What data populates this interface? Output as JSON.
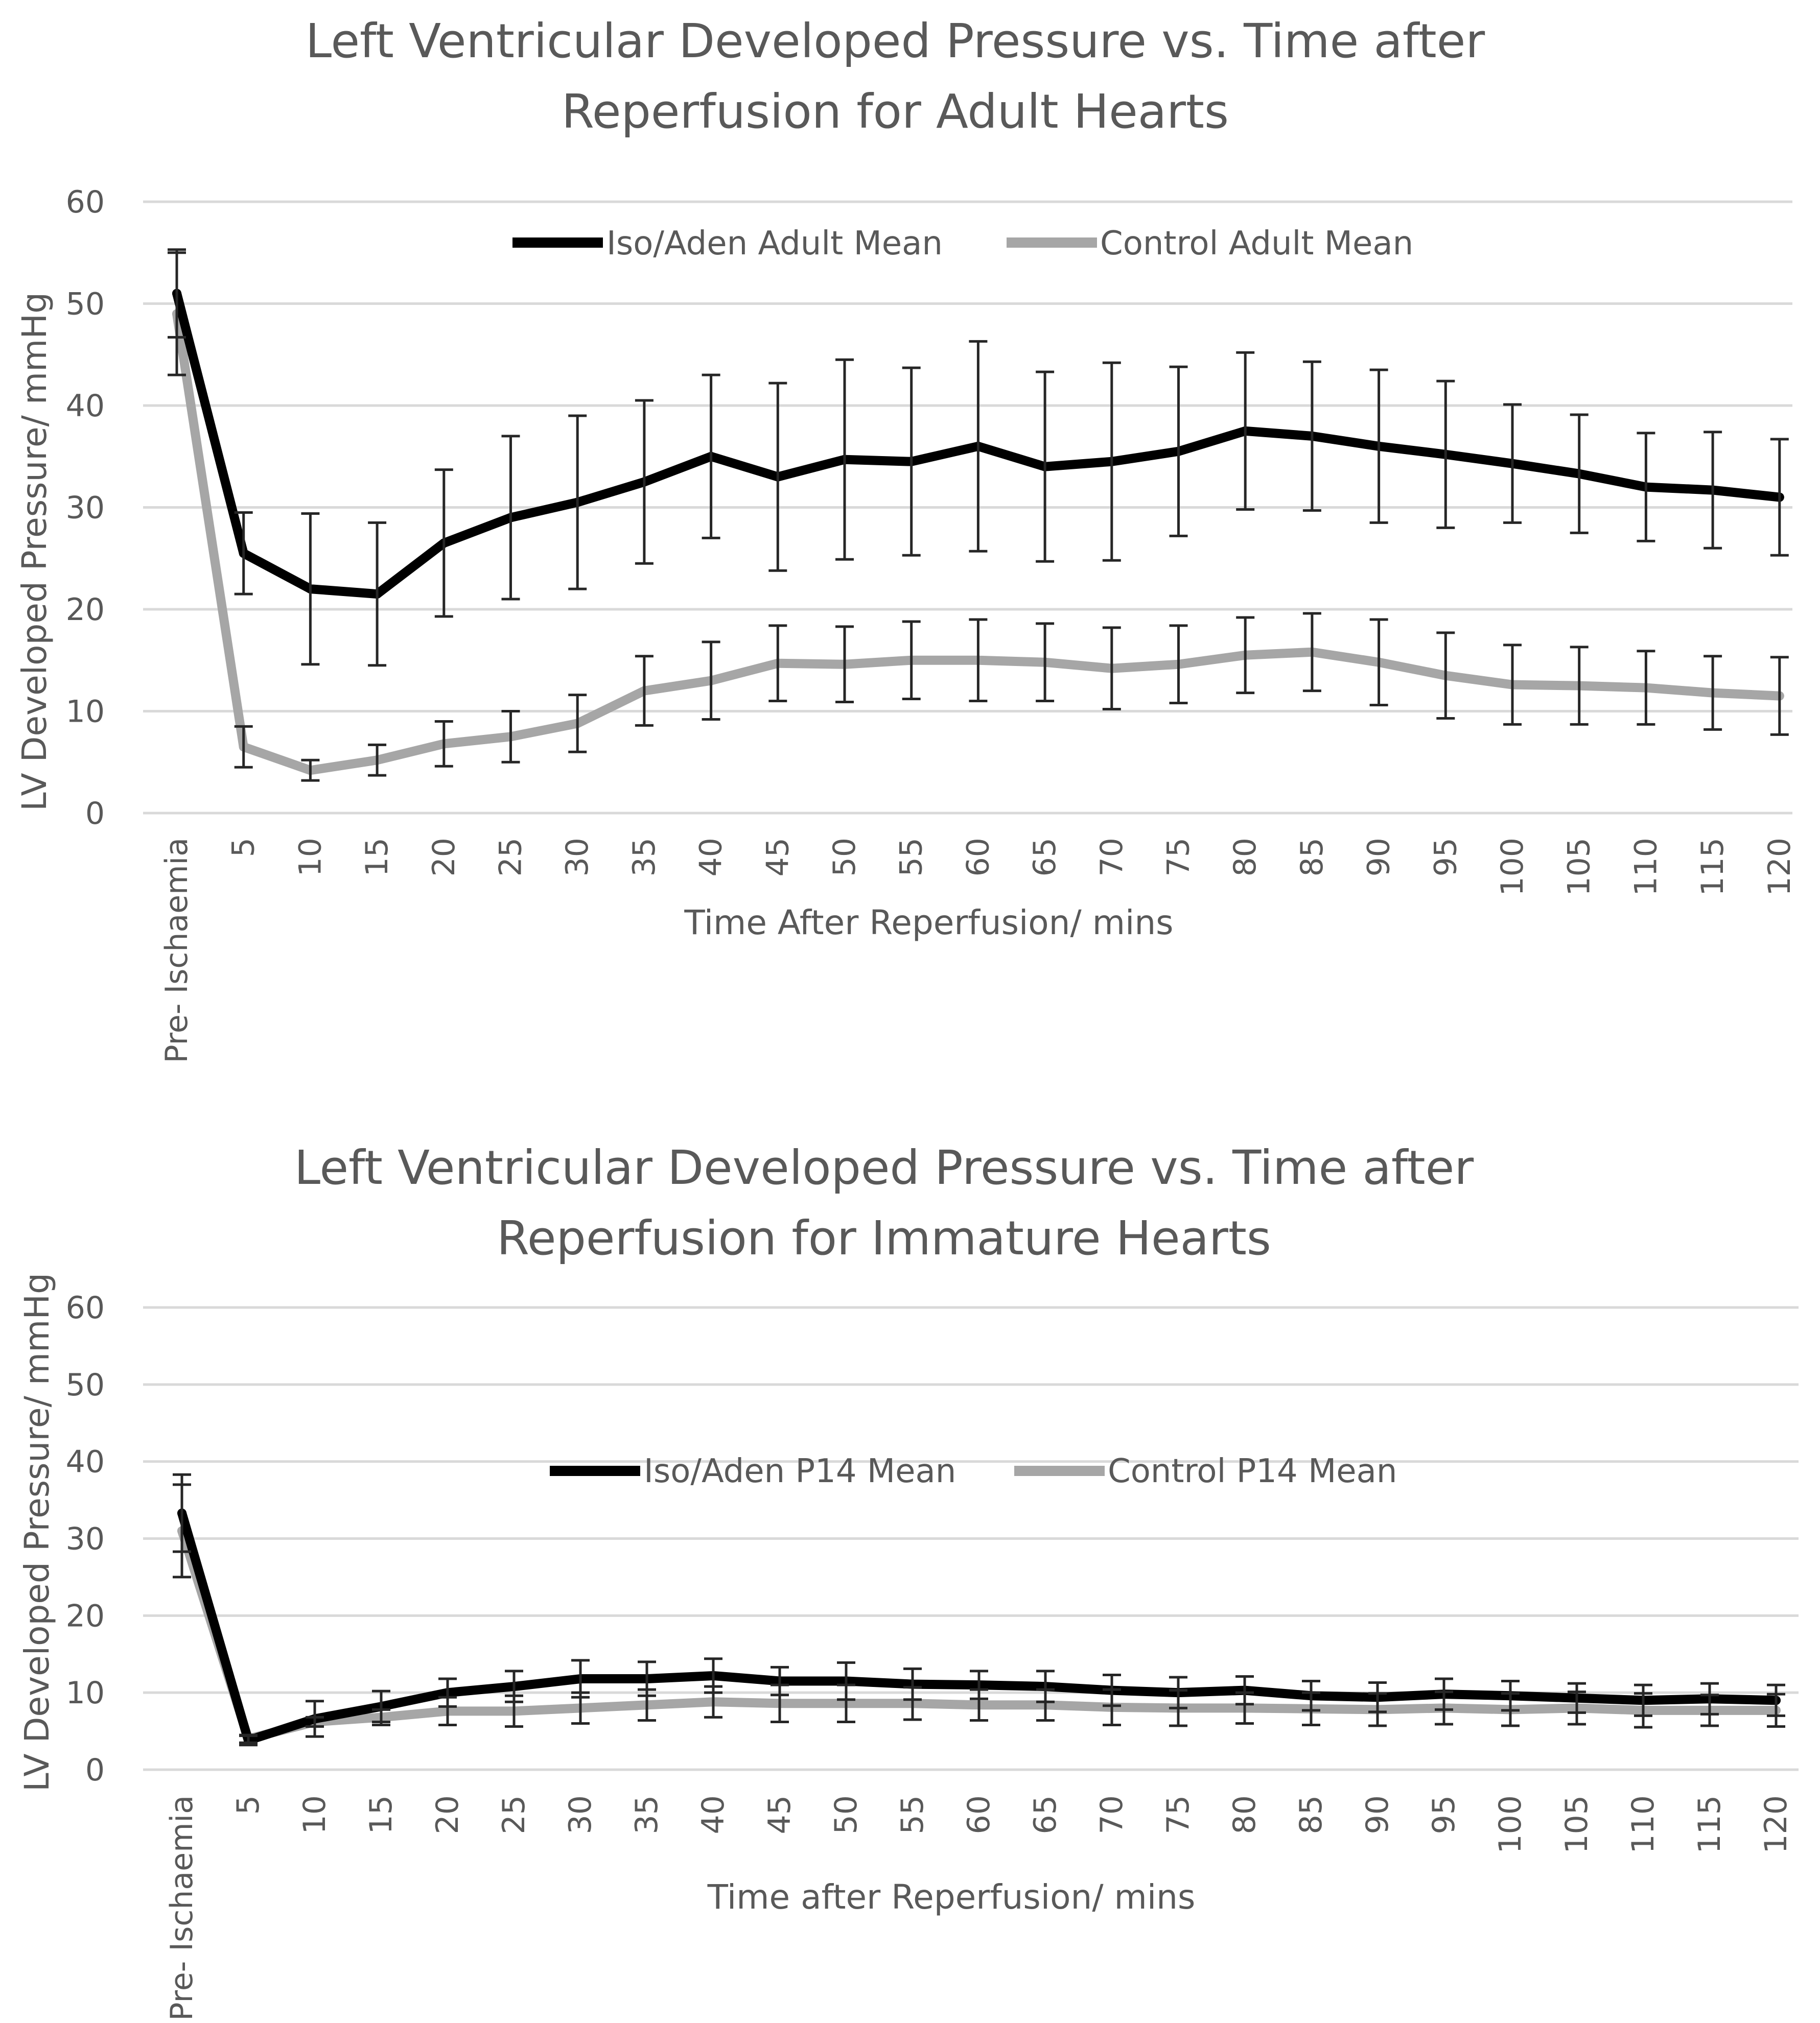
{
  "colors": {
    "iso": "#000000",
    "control": "#a6a6a6",
    "grid": "#d9d9d9",
    "text": "#595959"
  },
  "chart_data": [
    {
      "type": "line",
      "title_line1": "Left Ventricular Developed Pressure vs. Time after",
      "title_line2": "Reperfusion for Adult Hearts",
      "xlabel": "Time After Reperfusion/ mins",
      "ylabel": "LV Developed Pressure/ mmHg",
      "ylim": [
        0,
        60
      ],
      "yticks": [
        "0",
        "10",
        "20",
        "30",
        "40",
        "50",
        "60"
      ],
      "categories": [
        "Pre- Ischaemia",
        "5",
        "10",
        "15",
        "20",
        "25",
        "30",
        "35",
        "40",
        "45",
        "50",
        "55",
        "60",
        "65",
        "70",
        "75",
        "80",
        "85",
        "90",
        "95",
        "100",
        "105",
        "110",
        "115",
        "120"
      ],
      "legend_position": "top-center",
      "series": [
        {
          "name": "Iso/Aden Adult Mean",
          "color": "#000000",
          "values": [
            51,
            25.5,
            22,
            21.5,
            26.5,
            29,
            30.5,
            32.5,
            35,
            33,
            34.7,
            34.5,
            36,
            34,
            34.5,
            35.5,
            37.5,
            37,
            36,
            35.2,
            34.3,
            33.3,
            32,
            31.7,
            31
          ],
          "errors": [
            4.3,
            4,
            7.4,
            7,
            7.2,
            8,
            8.5,
            8,
            8,
            9.2,
            9.8,
            9.2,
            10.3,
            9.3,
            9.7,
            8.3,
            7.7,
            7.3,
            7.5,
            7.2,
            5.8,
            5.8,
            5.3,
            5.7,
            5.7
          ]
        },
        {
          "name": "Control Adult Mean",
          "color": "#a6a6a6",
          "values": [
            49,
            6.5,
            4.2,
            5.2,
            6.8,
            7.5,
            8.8,
            12,
            13,
            14.7,
            14.6,
            15,
            15,
            14.8,
            14.2,
            14.6,
            15.5,
            15.8,
            14.8,
            13.5,
            12.6,
            12.5,
            12.3,
            11.8,
            11.5
          ],
          "errors": [
            6,
            2,
            1,
            1.5,
            2.2,
            2.5,
            2.8,
            3.4,
            3.8,
            3.7,
            3.7,
            3.8,
            4,
            3.8,
            4,
            3.8,
            3.7,
            3.8,
            4.2,
            4.2,
            3.9,
            3.8,
            3.6,
            3.6,
            3.8
          ]
        }
      ]
    },
    {
      "type": "line",
      "title_line1": "Left Ventricular Developed Pressure vs. Time after",
      "title_line2": "Reperfusion for Immature Hearts",
      "xlabel": "Time after Reperfusion/ mins",
      "ylabel": "LV Developed Pressure/ mmHg",
      "ylim": [
        0,
        60
      ],
      "yticks": [
        "0",
        "10",
        "20",
        "30",
        "40",
        "50",
        "60"
      ],
      "categories": [
        "Pre- Ischaemia",
        "5",
        "10",
        "15",
        "20",
        "25",
        "30",
        "35",
        "40",
        "45",
        "50",
        "55",
        "60",
        "65",
        "70",
        "75",
        "80",
        "85",
        "90",
        "95",
        "100",
        "105",
        "110",
        "115",
        "120"
      ],
      "legend_position": "top-center",
      "series": [
        {
          "name": "Iso/Aden P14 Mean",
          "color": "#000000",
          "values": [
            33.3,
            3.8,
            6.6,
            8.2,
            10,
            10.8,
            11.8,
            11.8,
            12.2,
            11.5,
            11.5,
            11.1,
            11,
            10.8,
            10.3,
            10,
            10.3,
            9.6,
            9.4,
            9.8,
            9.6,
            9.3,
            9,
            9.2,
            9
          ],
          "errors": [
            5,
            0.6,
            2.3,
            2,
            1.8,
            2,
            2.4,
            2.2,
            2.2,
            1.8,
            2.4,
            2,
            1.8,
            2,
            2,
            2,
            1.8,
            1.9,
            1.9,
            2,
            1.9,
            1.9,
            2,
            2,
            2
          ]
        },
        {
          "name": "Control P14 Mean",
          "color": "#a6a6a6",
          "values": [
            31,
            4,
            6.2,
            6.8,
            7.6,
            7.6,
            8,
            8.4,
            8.8,
            8.6,
            8.6,
            8.6,
            8.4,
            8.4,
            8.1,
            8,
            8,
            7.9,
            7.8,
            8,
            7.8,
            8,
            7.7,
            7.7,
            7.7
          ],
          "errors": [
            6,
            0.5,
            0.6,
            1,
            1.8,
            2,
            2,
            2,
            2,
            2.4,
            2.4,
            2.1,
            2,
            2,
            2.3,
            2.3,
            2,
            2.1,
            2.1,
            2.1,
            2.1,
            2.1,
            2.2,
            2,
            2.1
          ]
        }
      ]
    }
  ]
}
